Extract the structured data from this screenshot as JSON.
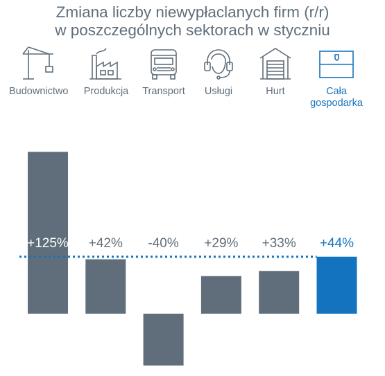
{
  "title_line1": "Zmiana liczby niewypłaclanych firm (r/r)",
  "title_line2": "w poszczególnych sektorach w styczniu",
  "sectors": [
    {
      "label": "Budownictwo",
      "icon": "crane-icon"
    },
    {
      "label": "Produkcja",
      "icon": "factory-icon"
    },
    {
      "label": "Transport",
      "icon": "truck-icon"
    },
    {
      "label": "Usługi",
      "icon": "headset-icon"
    },
    {
      "label": "Hurt",
      "icon": "warehouse-icon"
    },
    {
      "label": "Cała gospodarka",
      "icon": "flag-icon"
    }
  ],
  "colors": {
    "bar": "#5f6e7a",
    "accent": "#1473be",
    "text": "#5f6e7a"
  },
  "chart_data": {
    "type": "bar",
    "categories": [
      "Budownictwo",
      "Produkcja",
      "Transport",
      "Usługi",
      "Hurt",
      "Cała gospodarka"
    ],
    "values": [
      125,
      42,
      -40,
      29,
      33,
      44
    ],
    "labels": [
      "+125%",
      "+42%",
      "-40%",
      "+29%",
      "+33%",
      "+44%"
    ],
    "reference_line": 44,
    "highlight_index": 5
  }
}
